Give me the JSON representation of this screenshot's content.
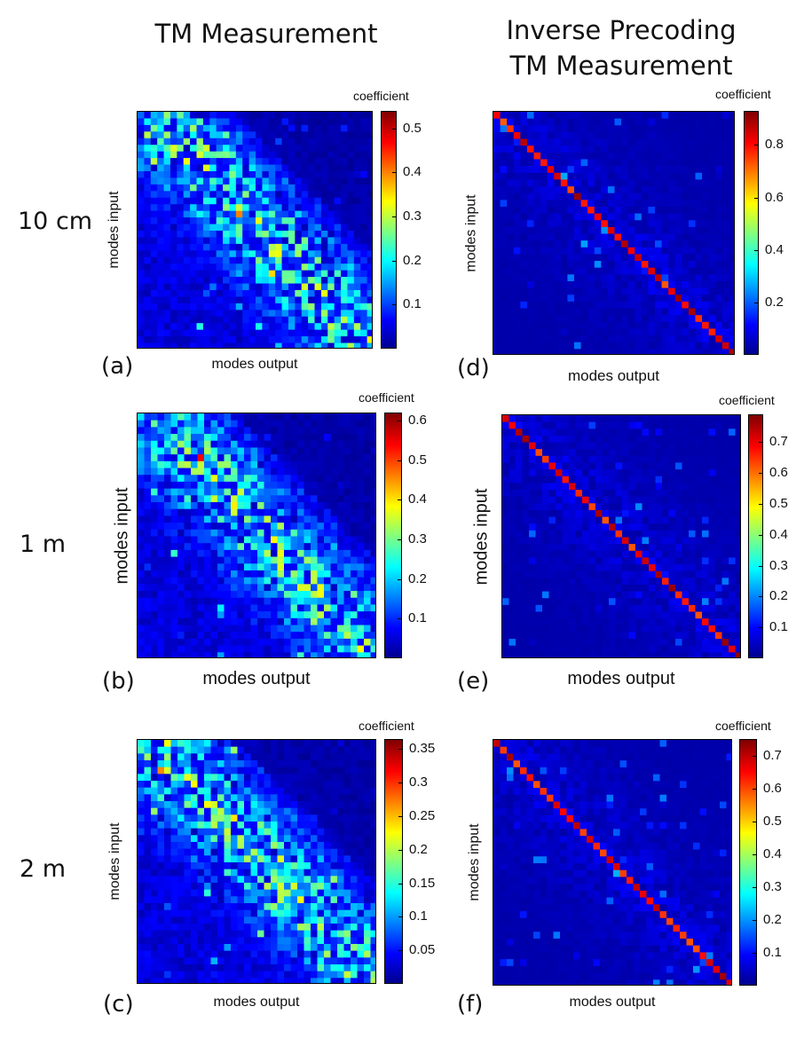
{
  "headers": {
    "left": "TM Measurement",
    "right_line1": "Inverse Precoding",
    "right_line2": "TM Measurement"
  },
  "row_labels": [
    "10 cm",
    "1 m",
    "2 m"
  ],
  "chart_data": [
    {
      "id": "a",
      "panel_label": "(a)",
      "type": "heatmap",
      "matrix_kind": "tm",
      "grid_size": 36,
      "xlabel": "modes output",
      "ylabel": "modes input",
      "colorbar_title": "coefficient",
      "colormap": "jet",
      "clim": [
        0,
        0.54
      ],
      "colorbar_ticks": [
        0.1,
        0.2,
        0.3,
        0.4,
        0.5
      ],
      "colorbar_tick_labels": [
        "0.1",
        "0.2",
        "0.3",
        "0.4",
        "0.5"
      ]
    },
    {
      "id": "d",
      "panel_label": "(d)",
      "type": "heatmap",
      "matrix_kind": "diag",
      "grid_size": 36,
      "xlabel": "modes output",
      "ylabel": "modes input",
      "colorbar_title": "coefficient",
      "colormap": "jet",
      "clim": [
        0,
        0.93
      ],
      "colorbar_ticks": [
        0.2,
        0.4,
        0.6,
        0.8
      ],
      "colorbar_tick_labels": [
        "0.2",
        "0.4",
        "0.6",
        "0.8"
      ]
    },
    {
      "id": "b",
      "panel_label": "(b)",
      "type": "heatmap",
      "matrix_kind": "tm",
      "grid_size": 36,
      "xlabel": "modes output",
      "ylabel": "modes input",
      "colorbar_title": "coefficient",
      "colormap": "jet",
      "clim": [
        0,
        0.62
      ],
      "colorbar_ticks": [
        0.1,
        0.2,
        0.3,
        0.4,
        0.5,
        0.6
      ],
      "colorbar_tick_labels": [
        "0.1",
        "0.2",
        "0.3",
        "0.4",
        "0.5",
        "0.6"
      ]
    },
    {
      "id": "e",
      "panel_label": "(e)",
      "type": "heatmap",
      "matrix_kind": "diag",
      "grid_size": 36,
      "xlabel": "modes output",
      "ylabel": "modes input",
      "colorbar_title": "coefficient",
      "colormap": "jet",
      "clim": [
        0,
        0.79
      ],
      "colorbar_ticks": [
        0.1,
        0.2,
        0.3,
        0.4,
        0.5,
        0.6,
        0.7
      ],
      "colorbar_tick_labels": [
        "0.1",
        "0.2",
        "0.3",
        "0.4",
        "0.5",
        "0.6",
        "0.7"
      ]
    },
    {
      "id": "c",
      "panel_label": "(c)",
      "type": "heatmap",
      "matrix_kind": "tm",
      "grid_size": 36,
      "xlabel": "modes output",
      "ylabel": "modes input",
      "colorbar_title": "coefficient",
      "colormap": "jet",
      "clim": [
        0,
        0.365
      ],
      "colorbar_ticks": [
        0.05,
        0.1,
        0.15,
        0.2,
        0.25,
        0.3,
        0.35
      ],
      "colorbar_tick_labels": [
        "0.05",
        "0.1",
        "0.15",
        "0.2",
        "0.25",
        "0.3",
        "0.35"
      ]
    },
    {
      "id": "f",
      "panel_label": "(f)",
      "type": "heatmap",
      "matrix_kind": "diag",
      "grid_size": 36,
      "xlabel": "modes output",
      "ylabel": "modes input",
      "colorbar_title": "coefficient",
      "colormap": "jet",
      "clim": [
        0,
        0.75
      ],
      "colorbar_ticks": [
        0.1,
        0.2,
        0.3,
        0.4,
        0.5,
        0.6,
        0.7
      ],
      "colorbar_tick_labels": [
        "0.1",
        "0.2",
        "0.3",
        "0.4",
        "0.5",
        "0.6",
        "0.7"
      ]
    }
  ]
}
